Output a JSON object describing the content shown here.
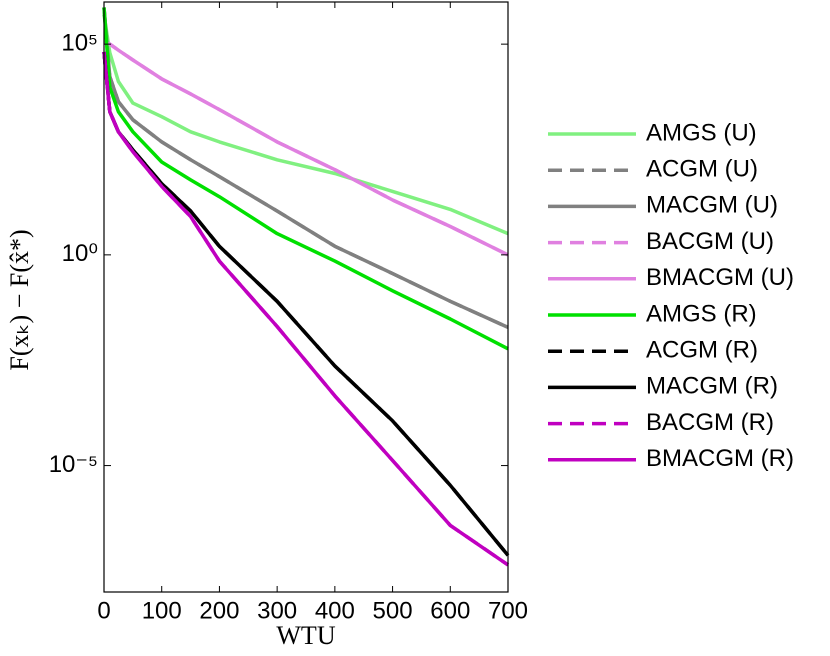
{
  "chart_data": {
    "type": "line",
    "xlabel": "WTU",
    "ylabel": "F(xₖ) − F(x̂*)",
    "log_y": true,
    "xlim": [
      0,
      700
    ],
    "xticks": [
      0,
      100,
      200,
      300,
      400,
      500,
      600,
      700
    ],
    "ylim": [
      1e-08,
      1000000
    ],
    "yticks": [
      {
        "value": 1e-05,
        "label": "10⁻⁵"
      },
      {
        "value": 1,
        "label": "10⁰"
      },
      {
        "value": 100000,
        "label": "10⁵"
      }
    ],
    "legend": "right",
    "x": [
      0,
      10,
      25,
      50,
      100,
      150,
      200,
      300,
      400,
      500,
      600,
      700
    ],
    "series": [
      {
        "name": "AMGS (U)",
        "color": "#80f080",
        "dash": false,
        "values": [
          500000,
          63000,
          13000,
          4000,
          1900,
          830,
          480,
          180,
          85,
          32,
          12,
          3.2
        ]
      },
      {
        "name": "ACGM (U)",
        "color": "#808080",
        "dash": true,
        "values": [
          740000,
          17000,
          4300,
          1600,
          480,
          180,
          72,
          11,
          1.6,
          0.36,
          0.079,
          0.019
        ]
      },
      {
        "name": "MACGM (U)",
        "color": "#808080",
        "dash": false,
        "values": [
          740000,
          17000,
          4300,
          1600,
          480,
          180,
          72,
          11,
          1.6,
          0.36,
          0.079,
          0.019
        ]
      },
      {
        "name": "BACGM (U)",
        "color": "#e080e0",
        "dash": true,
        "values": [
          110000,
          100000,
          72000,
          42000,
          15000,
          6600,
          2800,
          480,
          105,
          20,
          4.7,
          1
        ]
      },
      {
        "name": "BMACGM (U)",
        "color": "#e080e0",
        "dash": false,
        "values": [
          110000,
          100000,
          72000,
          42000,
          15000,
          6600,
          2800,
          480,
          105,
          20,
          4.7,
          1
        ]
      },
      {
        "name": "AMGS (R)",
        "color": "#00e000",
        "dash": false,
        "values": [
          740000,
          9500,
          2500,
          830,
          160,
          60,
          24,
          3.2,
          0.71,
          0.14,
          0.03,
          0.0059
        ]
      },
      {
        "name": "ACGM (R)",
        "color": "#000000",
        "dash": true,
        "values": [
          65000,
          2500,
          830,
          310,
          49,
          11,
          1.6,
          0.079,
          0.0023,
          0.000115,
          3.4e-06,
          7.4e-08
        ]
      },
      {
        "name": "MACGM (R)",
        "color": "#000000",
        "dash": false,
        "values": [
          65000,
          2500,
          830,
          310,
          49,
          11,
          1.6,
          0.079,
          0.0023,
          0.000115,
          3.4e-06,
          7.4e-08
        ]
      },
      {
        "name": "BACGM (R)",
        "color": "#c000c0",
        "dash": true,
        "values": [
          65000,
          2500,
          830,
          280,
          42,
          8.1,
          0.71,
          0.02,
          0.00045,
          1.32e-05,
          3.8e-07,
          4.4e-08
        ]
      },
      {
        "name": "BMACGM (R)",
        "color": "#c000c0",
        "dash": false,
        "values": [
          65000,
          2500,
          830,
          280,
          42,
          8.1,
          0.71,
          0.02,
          0.00045,
          1.32e-05,
          3.8e-07,
          4.4e-08
        ]
      }
    ]
  }
}
